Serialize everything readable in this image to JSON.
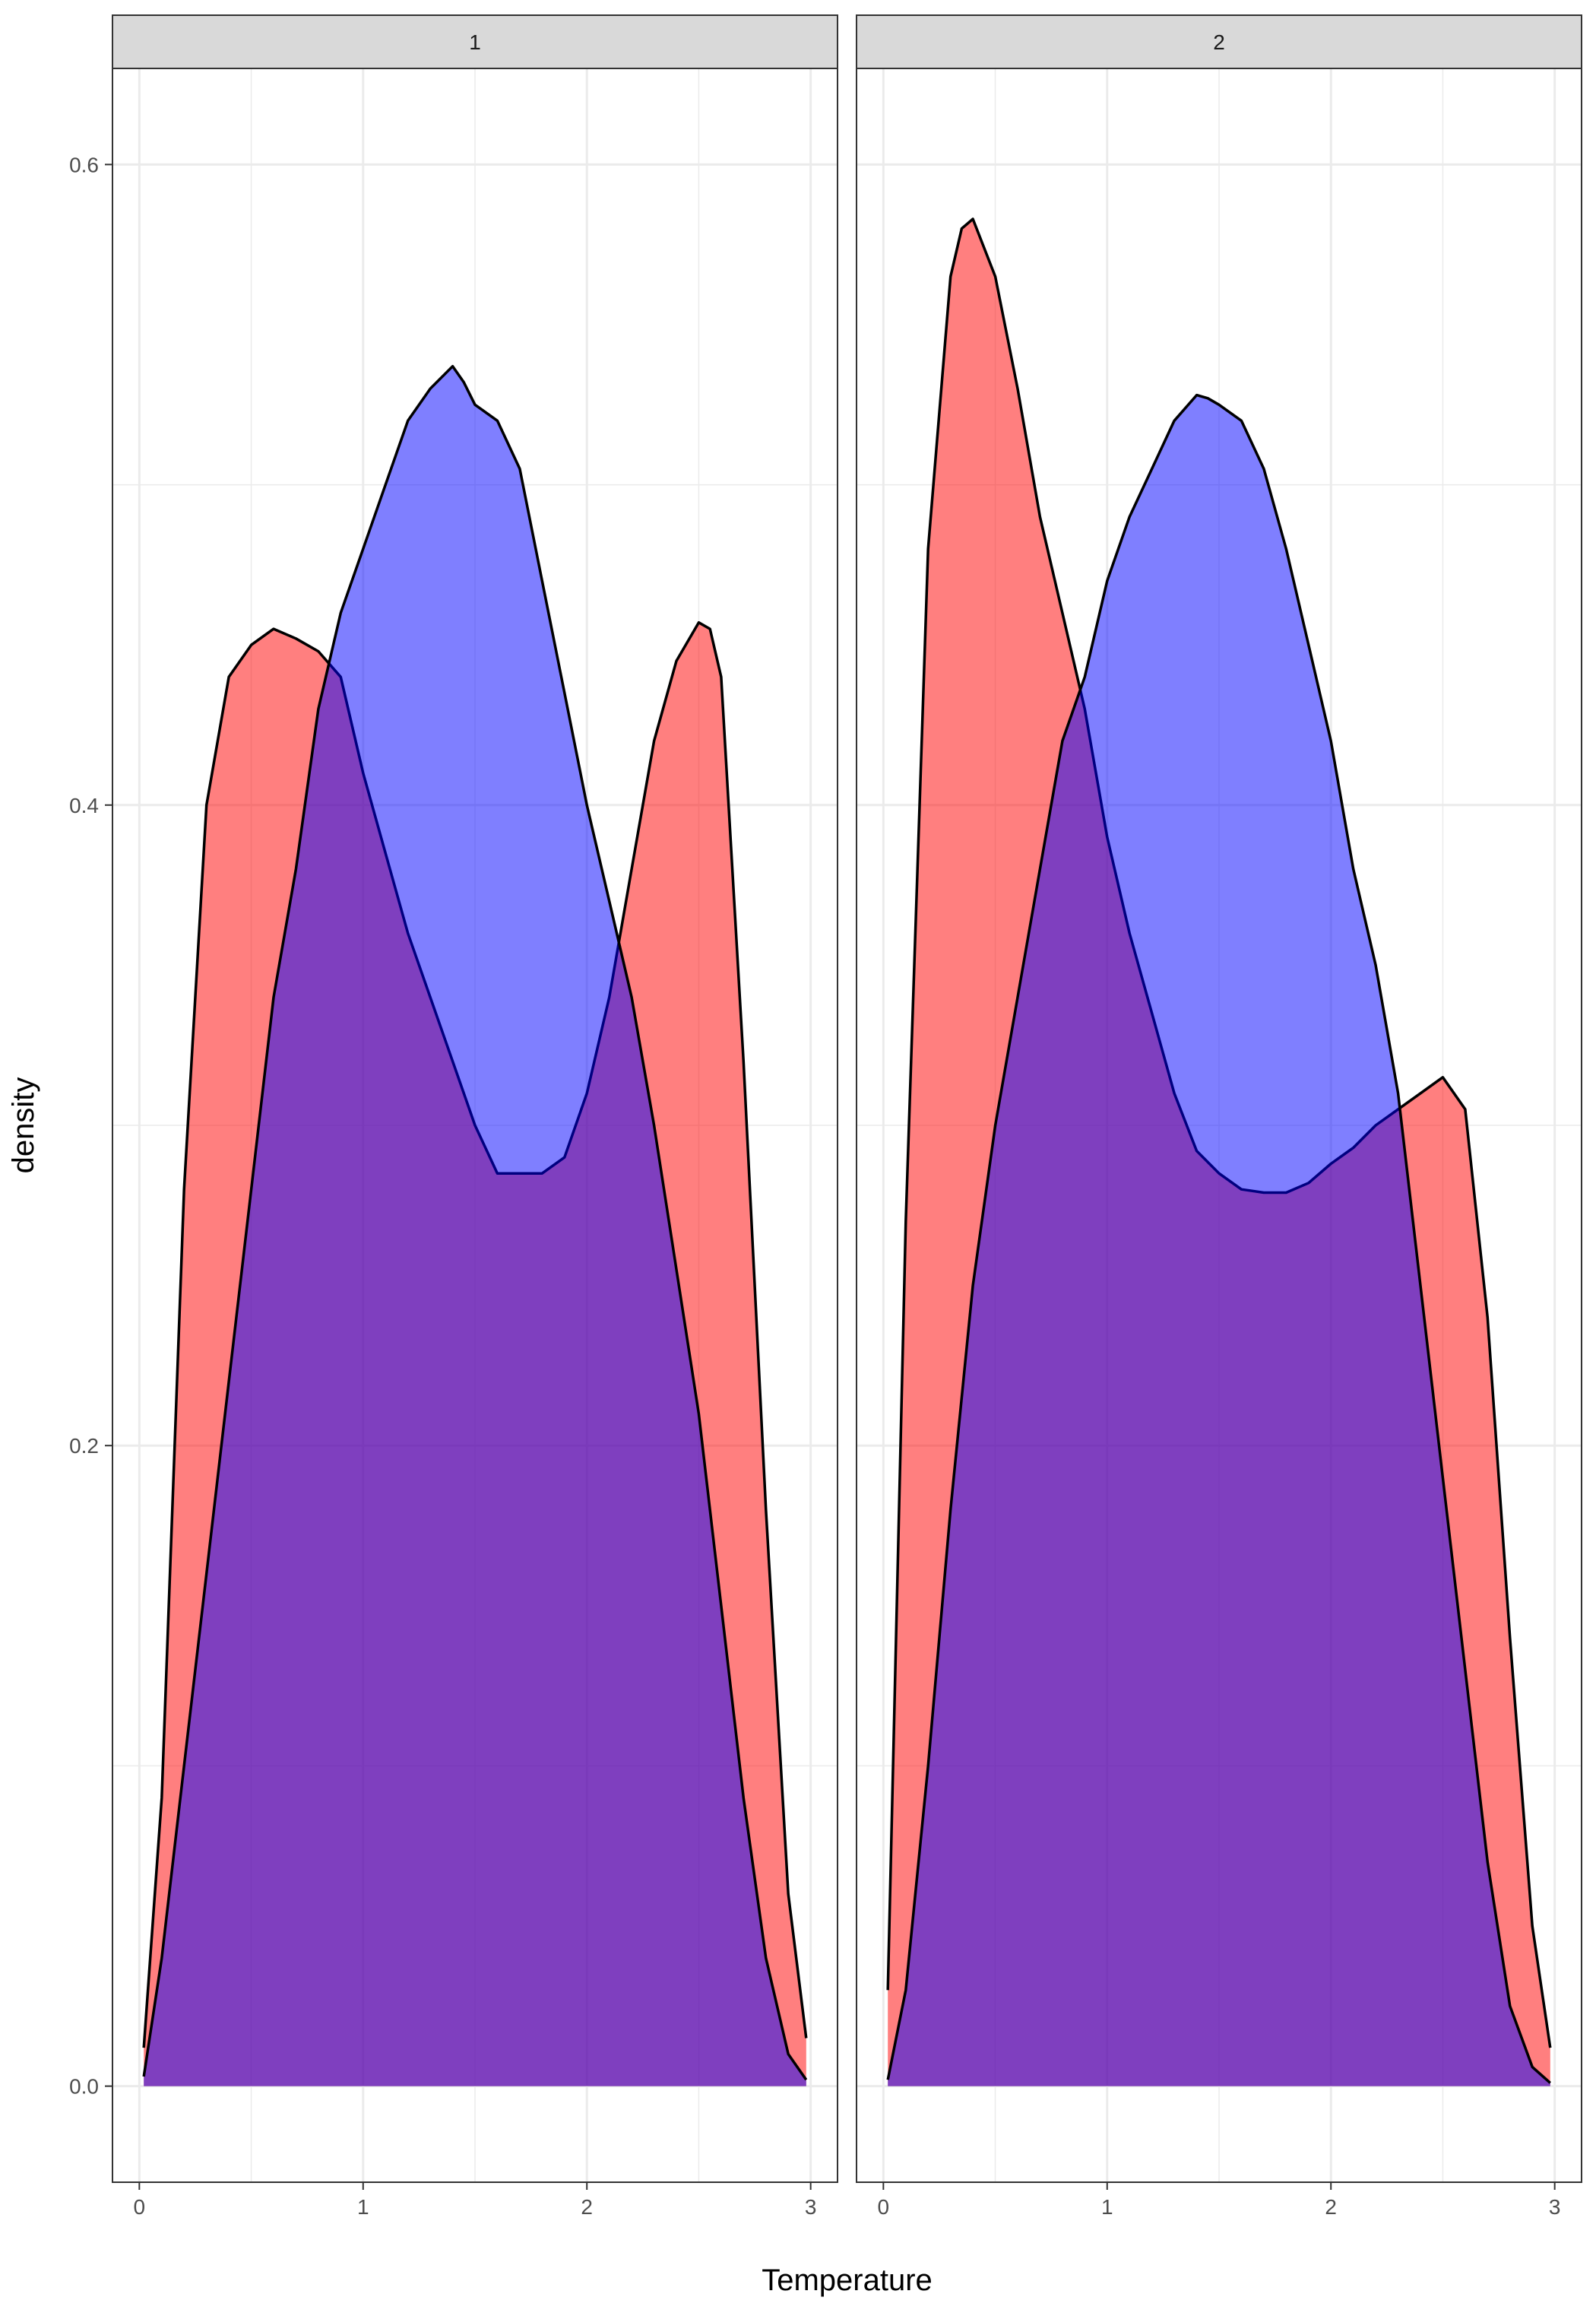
{
  "chart_data": {
    "type": "area",
    "subtype": "density",
    "xlabel": "Temperature",
    "ylabel": "density",
    "xlim": [
      -0.12,
      3.12
    ],
    "ylim": [
      -0.03,
      0.63
    ],
    "x_ticks": [
      0,
      1,
      2,
      3
    ],
    "y_ticks": [
      0.0,
      0.2,
      0.4,
      0.6
    ],
    "y_tick_labels": [
      "0.0",
      "0.2",
      "0.4",
      "0.6"
    ],
    "grid": true,
    "legend": "none",
    "colors": {
      "red_fill": "#ff0000",
      "blue_fill": "#0000ff",
      "fill_opacity": 0.5,
      "outline": "#000000",
      "strip_bg": "#d9d9d9",
      "grid": "#ebebeb",
      "panel_border": "#333333"
    },
    "facets": [
      {
        "label": "1",
        "series": [
          {
            "color": "red",
            "x": [
              0.02,
              0.1,
              0.2,
              0.3,
              0.4,
              0.5,
              0.6,
              0.7,
              0.8,
              0.9,
              1.0,
              1.1,
              1.2,
              1.3,
              1.4,
              1.5,
              1.6,
              1.7,
              1.8,
              1.9,
              2.0,
              2.1,
              2.2,
              2.3,
              2.4,
              2.5,
              2.55,
              2.6,
              2.7,
              2.8,
              2.9,
              2.98
            ],
            "y": [
              0.012,
              0.09,
              0.28,
              0.4,
              0.44,
              0.45,
              0.455,
              0.452,
              0.448,
              0.44,
              0.41,
              0.385,
              0.36,
              0.34,
              0.32,
              0.3,
              0.285,
              0.285,
              0.285,
              0.29,
              0.31,
              0.34,
              0.38,
              0.42,
              0.445,
              0.457,
              0.455,
              0.44,
              0.32,
              0.18,
              0.06,
              0.015
            ]
          },
          {
            "color": "blue",
            "x": [
              0.02,
              0.1,
              0.2,
              0.3,
              0.4,
              0.5,
              0.6,
              0.7,
              0.8,
              0.9,
              1.0,
              1.1,
              1.2,
              1.3,
              1.4,
              1.45,
              1.5,
              1.6,
              1.7,
              1.8,
              1.9,
              2.0,
              2.1,
              2.2,
              2.3,
              2.4,
              2.5,
              2.6,
              2.7,
              2.8,
              2.9,
              2.98
            ],
            "y": [
              0.003,
              0.04,
              0.1,
              0.16,
              0.22,
              0.28,
              0.34,
              0.38,
              0.43,
              0.46,
              0.48,
              0.5,
              0.52,
              0.53,
              0.537,
              0.532,
              0.525,
              0.52,
              0.505,
              0.47,
              0.435,
              0.4,
              0.37,
              0.34,
              0.3,
              0.255,
              0.21,
              0.15,
              0.09,
              0.04,
              0.01,
              0.002
            ]
          }
        ]
      },
      {
        "label": "2",
        "series": [
          {
            "color": "red",
            "x": [
              0.02,
              0.1,
              0.2,
              0.3,
              0.35,
              0.4,
              0.5,
              0.6,
              0.7,
              0.8,
              0.9,
              1.0,
              1.1,
              1.2,
              1.3,
              1.4,
              1.5,
              1.6,
              1.7,
              1.8,
              1.9,
              2.0,
              2.1,
              2.2,
              2.3,
              2.4,
              2.5,
              2.6,
              2.7,
              2.8,
              2.9,
              2.98
            ],
            "y": [
              0.03,
              0.27,
              0.48,
              0.565,
              0.58,
              0.583,
              0.565,
              0.53,
              0.49,
              0.46,
              0.43,
              0.39,
              0.36,
              0.335,
              0.31,
              0.292,
              0.285,
              0.28,
              0.279,
              0.279,
              0.282,
              0.288,
              0.293,
              0.3,
              0.305,
              0.31,
              0.315,
              0.305,
              0.24,
              0.14,
              0.05,
              0.012
            ]
          },
          {
            "color": "blue",
            "x": [
              0.02,
              0.1,
              0.2,
              0.3,
              0.4,
              0.5,
              0.6,
              0.7,
              0.8,
              0.9,
              1.0,
              1.1,
              1.2,
              1.3,
              1.4,
              1.45,
              1.5,
              1.6,
              1.7,
              1.8,
              1.9,
              2.0,
              2.1,
              2.2,
              2.3,
              2.4,
              2.5,
              2.6,
              2.7,
              2.8,
              2.9,
              2.98
            ],
            "y": [
              0.002,
              0.03,
              0.1,
              0.18,
              0.25,
              0.3,
              0.34,
              0.38,
              0.42,
              0.44,
              0.47,
              0.49,
              0.505,
              0.52,
              0.528,
              0.527,
              0.525,
              0.52,
              0.505,
              0.48,
              0.45,
              0.42,
              0.38,
              0.35,
              0.31,
              0.25,
              0.19,
              0.13,
              0.07,
              0.025,
              0.006,
              0.001
            ]
          }
        ]
      }
    ]
  }
}
